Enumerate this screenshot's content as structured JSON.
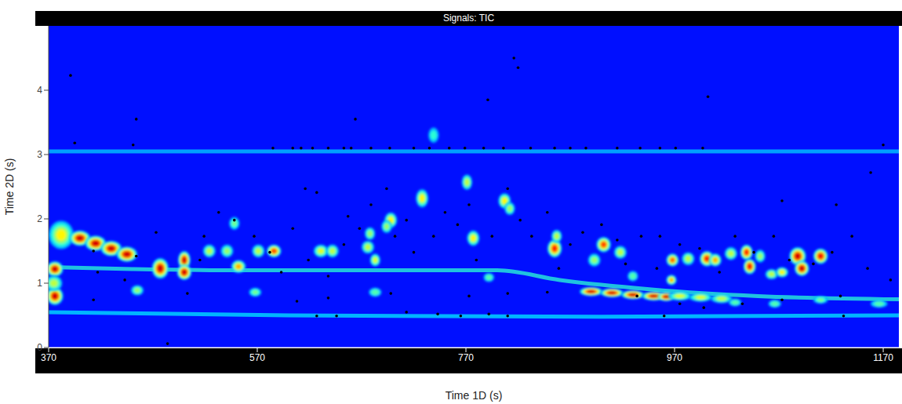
{
  "chart_data": {
    "type": "heatmap",
    "title": "Signals: TIC",
    "x_label": "Time 1D (s)",
    "y_label": "Time 2D (s)",
    "xlim": [
      370,
      1185
    ],
    "ylim": [
      0,
      5
    ],
    "xticks": [
      370,
      570,
      770,
      970,
      1170
    ],
    "yticks": [
      0,
      1,
      2,
      3,
      4
    ],
    "grid": false,
    "marker": "dot",
    "color": "#000000",
    "bands": [
      {
        "intensity": 0.3,
        "points": [
          [
            370,
            1.25
          ],
          [
            450,
            1.22
          ],
          [
            550,
            1.2
          ],
          [
            650,
            1.2
          ],
          [
            800,
            1.2
          ],
          [
            860,
            1.05
          ],
          [
            950,
            0.9
          ],
          [
            1050,
            0.8
          ],
          [
            1185,
            0.75
          ]
        ]
      },
      {
        "intensity": 0.22,
        "points": [
          [
            370,
            0.55
          ],
          [
            600,
            0.5
          ],
          [
            900,
            0.48
          ],
          [
            1185,
            0.5
          ]
        ]
      },
      {
        "intensity": 0.18,
        "points": [
          [
            370,
            3.05
          ],
          [
            1185,
            3.05
          ]
        ]
      }
    ],
    "spots": [
      {
        "x": 376,
        "y": 1.22,
        "intensity": 1,
        "sx": 8,
        "sy": 0.12
      },
      {
        "x": 376,
        "y": 0.8,
        "intensity": 1,
        "sx": 8,
        "sy": 0.14
      },
      {
        "x": 375,
        "y": 1.0,
        "intensity": 0.5,
        "sx": 8,
        "sy": 0.12
      },
      {
        "x": 382,
        "y": 1.75,
        "intensity": 0.6,
        "sx": 12,
        "sy": 0.22
      },
      {
        "x": 400,
        "y": 1.7,
        "intensity": 1,
        "sx": 10,
        "sy": 0.12
      },
      {
        "x": 415,
        "y": 1.62,
        "intensity": 1,
        "sx": 10,
        "sy": 0.12
      },
      {
        "x": 430,
        "y": 1.54,
        "intensity": 1,
        "sx": 10,
        "sy": 0.12
      },
      {
        "x": 445,
        "y": 1.45,
        "intensity": 1,
        "sx": 10,
        "sy": 0.12
      },
      {
        "x": 477,
        "y": 1.23,
        "intensity": 1,
        "sx": 8,
        "sy": 0.16
      },
      {
        "x": 500,
        "y": 1.36,
        "intensity": 1,
        "sx": 6,
        "sy": 0.14
      },
      {
        "x": 500,
        "y": 1.17,
        "intensity": 1,
        "sx": 7,
        "sy": 0.12
      },
      {
        "x": 455,
        "y": 0.89,
        "intensity": 0.45,
        "sx": 6,
        "sy": 0.08
      },
      {
        "x": 524,
        "y": 1.5,
        "intensity": 0.5,
        "sx": 6,
        "sy": 0.1
      },
      {
        "x": 541,
        "y": 1.5,
        "intensity": 0.45,
        "sx": 6,
        "sy": 0.1
      },
      {
        "x": 552,
        "y": 1.26,
        "intensity": 0.7,
        "sx": 7,
        "sy": 0.1
      },
      {
        "x": 571,
        "y": 1.5,
        "intensity": 0.5,
        "sx": 6,
        "sy": 0.1
      },
      {
        "x": 586,
        "y": 1.5,
        "intensity": 0.85,
        "sx": 7,
        "sy": 0.1
      },
      {
        "x": 548,
        "y": 1.93,
        "intensity": 0.4,
        "sx": 5,
        "sy": 0.1
      },
      {
        "x": 568,
        "y": 0.86,
        "intensity": 0.4,
        "sx": 6,
        "sy": 0.07
      },
      {
        "x": 631,
        "y": 1.5,
        "intensity": 0.55,
        "sx": 7,
        "sy": 0.1
      },
      {
        "x": 642,
        "y": 1.5,
        "intensity": 0.5,
        "sx": 6,
        "sy": 0.1
      },
      {
        "x": 676,
        "y": 1.56,
        "intensity": 0.5,
        "sx": 6,
        "sy": 0.1
      },
      {
        "x": 678,
        "y": 1.77,
        "intensity": 0.45,
        "sx": 5,
        "sy": 0.1
      },
      {
        "x": 683,
        "y": 0.86,
        "intensity": 0.35,
        "sx": 6,
        "sy": 0.07
      },
      {
        "x": 698,
        "y": 1.98,
        "intensity": 0.6,
        "sx": 6,
        "sy": 0.12
      },
      {
        "x": 694,
        "y": 1.88,
        "intensity": 0.45,
        "sx": 5,
        "sy": 0.1
      },
      {
        "x": 683,
        "y": 1.36,
        "intensity": 0.55,
        "sx": 5,
        "sy": 0.1
      },
      {
        "x": 728,
        "y": 2.32,
        "intensity": 0.6,
        "sx": 6,
        "sy": 0.14
      },
      {
        "x": 739,
        "y": 3.3,
        "intensity": 0.3,
        "sx": 5,
        "sy": 0.12
      },
      {
        "x": 771,
        "y": 2.57,
        "intensity": 0.5,
        "sx": 5,
        "sy": 0.12
      },
      {
        "x": 777,
        "y": 1.7,
        "intensity": 0.6,
        "sx": 6,
        "sy": 0.12
      },
      {
        "x": 807,
        "y": 2.28,
        "intensity": 0.6,
        "sx": 6,
        "sy": 0.12
      },
      {
        "x": 812,
        "y": 2.16,
        "intensity": 0.45,
        "sx": 5,
        "sy": 0.1
      },
      {
        "x": 792,
        "y": 1.09,
        "intensity": 0.35,
        "sx": 5,
        "sy": 0.07
      },
      {
        "x": 855,
        "y": 1.54,
        "intensity": 0.9,
        "sx": 7,
        "sy": 0.14
      },
      {
        "x": 857,
        "y": 1.73,
        "intensity": 0.5,
        "sx": 5,
        "sy": 0.1
      },
      {
        "x": 902,
        "y": 1.6,
        "intensity": 0.85,
        "sx": 7,
        "sy": 0.12
      },
      {
        "x": 893,
        "y": 1.36,
        "intensity": 0.45,
        "sx": 6,
        "sy": 0.1
      },
      {
        "x": 918,
        "y": 1.48,
        "intensity": 0.5,
        "sx": 6,
        "sy": 0.1
      },
      {
        "x": 930,
        "y": 1.11,
        "intensity": 0.35,
        "sx": 5,
        "sy": 0.08
      },
      {
        "x": 890,
        "y": 0.87,
        "intensity": 1,
        "sx": 11,
        "sy": 0.07
      },
      {
        "x": 910,
        "y": 0.85,
        "intensity": 1,
        "sx": 11,
        "sy": 0.07
      },
      {
        "x": 930,
        "y": 0.82,
        "intensity": 1,
        "sx": 11,
        "sy": 0.07
      },
      {
        "x": 950,
        "y": 0.8,
        "intensity": 1,
        "sx": 11,
        "sy": 0.07
      },
      {
        "x": 962,
        "y": 0.79,
        "intensity": 1,
        "sx": 8,
        "sy": 0.07
      },
      {
        "x": 975,
        "y": 0.8,
        "intensity": 0.55,
        "sx": 11,
        "sy": 0.07
      },
      {
        "x": 995,
        "y": 0.78,
        "intensity": 0.55,
        "sx": 11,
        "sy": 0.07
      },
      {
        "x": 1015,
        "y": 0.76,
        "intensity": 0.5,
        "sx": 10,
        "sy": 0.07
      },
      {
        "x": 968,
        "y": 1.36,
        "intensity": 0.8,
        "sx": 6,
        "sy": 0.1
      },
      {
        "x": 967,
        "y": 1.05,
        "intensity": 0.7,
        "sx": 5,
        "sy": 0.08
      },
      {
        "x": 983,
        "y": 1.38,
        "intensity": 0.5,
        "sx": 6,
        "sy": 0.1
      },
      {
        "x": 1001,
        "y": 1.38,
        "intensity": 0.9,
        "sx": 7,
        "sy": 0.12
      },
      {
        "x": 1009,
        "y": 1.36,
        "intensity": 0.7,
        "sx": 6,
        "sy": 0.1
      },
      {
        "x": 1024,
        "y": 1.46,
        "intensity": 0.5,
        "sx": 6,
        "sy": 0.1
      },
      {
        "x": 1039,
        "y": 1.48,
        "intensity": 0.9,
        "sx": 6,
        "sy": 0.12
      },
      {
        "x": 1042,
        "y": 1.26,
        "intensity": 0.95,
        "sx": 6,
        "sy": 0.12
      },
      {
        "x": 1052,
        "y": 1.42,
        "intensity": 0.45,
        "sx": 5,
        "sy": 0.1
      },
      {
        "x": 1063,
        "y": 1.14,
        "intensity": 0.5,
        "sx": 6,
        "sy": 0.08
      },
      {
        "x": 1073,
        "y": 1.17,
        "intensity": 0.6,
        "sx": 6,
        "sy": 0.08
      },
      {
        "x": 1088,
        "y": 1.42,
        "intensity": 1,
        "sx": 8,
        "sy": 0.14
      },
      {
        "x": 1092,
        "y": 1.23,
        "intensity": 1,
        "sx": 7,
        "sy": 0.12
      },
      {
        "x": 1110,
        "y": 1.42,
        "intensity": 0.95,
        "sx": 7,
        "sy": 0.12
      },
      {
        "x": 1110,
        "y": 0.74,
        "intensity": 0.4,
        "sx": 7,
        "sy": 0.06
      },
      {
        "x": 1066,
        "y": 0.68,
        "intensity": 0.35,
        "sx": 6,
        "sy": 0.06
      },
      {
        "x": 1028,
        "y": 0.7,
        "intensity": 0.35,
        "sx": 6,
        "sy": 0.06
      },
      {
        "x": 1166,
        "y": 0.68,
        "intensity": 0.35,
        "sx": 8,
        "sy": 0.06
      }
    ],
    "peaks": [
      [
        585,
        3.1
      ],
      [
        604,
        3.1
      ],
      [
        612,
        3.1
      ],
      [
        623,
        3.1
      ],
      [
        638,
        3.1
      ],
      [
        653,
        3.1
      ],
      [
        660,
        3.1
      ],
      [
        679,
        3.1
      ],
      [
        697,
        3.1
      ],
      [
        720,
        3.1
      ],
      [
        735,
        3.1
      ],
      [
        754,
        3.1
      ],
      [
        769,
        3.1
      ],
      [
        787,
        3.1
      ],
      [
        806,
        3.1
      ],
      [
        832,
        3.1
      ],
      [
        855,
        3.1
      ],
      [
        870,
        3.1
      ],
      [
        885,
        3.1
      ],
      [
        915,
        3.1
      ],
      [
        937,
        3.1
      ],
      [
        956,
        3.1
      ],
      [
        971,
        3.1
      ],
      [
        997,
        3.1
      ],
      [
        395,
        3.18
      ],
      [
        391,
        4.23
      ],
      [
        454,
        3.55
      ],
      [
        664,
        3.55
      ],
      [
        816,
        4.5
      ],
      [
        820,
        4.35
      ],
      [
        791,
        3.85
      ],
      [
        1002,
        3.9
      ],
      [
        451,
        3.15
      ],
      [
        1170,
        3.15
      ],
      [
        1158,
        2.72
      ],
      [
        1125,
        2.22
      ],
      [
        1073,
        2.28
      ],
      [
        484,
        0.06
      ],
      [
        627,
        0.49
      ],
      [
        646,
        0.49
      ],
      [
        713,
        0.55
      ],
      [
        743,
        0.52
      ],
      [
        765,
        0.49
      ],
      [
        792,
        0.52
      ],
      [
        810,
        0.49
      ],
      [
        960,
        0.49
      ],
      [
        1132,
        0.49
      ],
      [
        413,
        1.5
      ],
      [
        417,
        1.17
      ],
      [
        443,
        1.05
      ],
      [
        454,
        1.42
      ],
      [
        473,
        1.79
      ],
      [
        515,
        1.36
      ],
      [
        519,
        1.73
      ],
      [
        533,
        2.1
      ],
      [
        548,
        1.98
      ],
      [
        567,
        1.73
      ],
      [
        582,
        1.48
      ],
      [
        593,
        1.17
      ],
      [
        604,
        1.85
      ],
      [
        616,
        2.47
      ],
      [
        627,
        2.41
      ],
      [
        619,
        1.36
      ],
      [
        638,
        1.11
      ],
      [
        653,
        1.6
      ],
      [
        657,
        2.04
      ],
      [
        668,
        1.85
      ],
      [
        679,
        2.22
      ],
      [
        694,
        2.47
      ],
      [
        702,
        1.73
      ],
      [
        713,
        1.98
      ],
      [
        720,
        1.48
      ],
      [
        739,
        1.73
      ],
      [
        750,
        2.1
      ],
      [
        762,
        1.91
      ],
      [
        773,
        2.22
      ],
      [
        780,
        1.36
      ],
      [
        795,
        1.73
      ],
      [
        810,
        2.47
      ],
      [
        822,
        1.98
      ],
      [
        833,
        1.73
      ],
      [
        848,
        2.1
      ],
      [
        859,
        1.23
      ],
      [
        870,
        1.6
      ],
      [
        882,
        1.79
      ],
      [
        900,
        1.91
      ],
      [
        915,
        1.67
      ],
      [
        923,
        1.3
      ],
      [
        938,
        1.73
      ],
      [
        953,
        1.23
      ],
      [
        956,
        1.73
      ],
      [
        975,
        1.6
      ],
      [
        994,
        1.54
      ],
      [
        1013,
        1.17
      ],
      [
        1028,
        1.73
      ],
      [
        1046,
        1.48
      ],
      [
        1065,
        1.73
      ],
      [
        1080,
        1.36
      ],
      [
        1103,
        1.3
      ],
      [
        1121,
        1.48
      ],
      [
        1140,
        1.73
      ],
      [
        1155,
        1.23
      ],
      [
        1177,
        1.05
      ],
      [
        1129,
        0.8
      ],
      [
        1073,
        0.74
      ],
      [
        1035,
        0.68
      ],
      [
        998,
        0.62
      ],
      [
        975,
        0.68
      ],
      [
        934,
        0.8
      ],
      [
        848,
        0.86
      ],
      [
        810,
        0.84
      ],
      [
        773,
        0.8
      ],
      [
        698,
        0.84
      ],
      [
        638,
        0.77
      ],
      [
        608,
        0.72
      ],
      [
        413,
        0.74
      ],
      [
        503,
        0.84
      ]
    ]
  }
}
